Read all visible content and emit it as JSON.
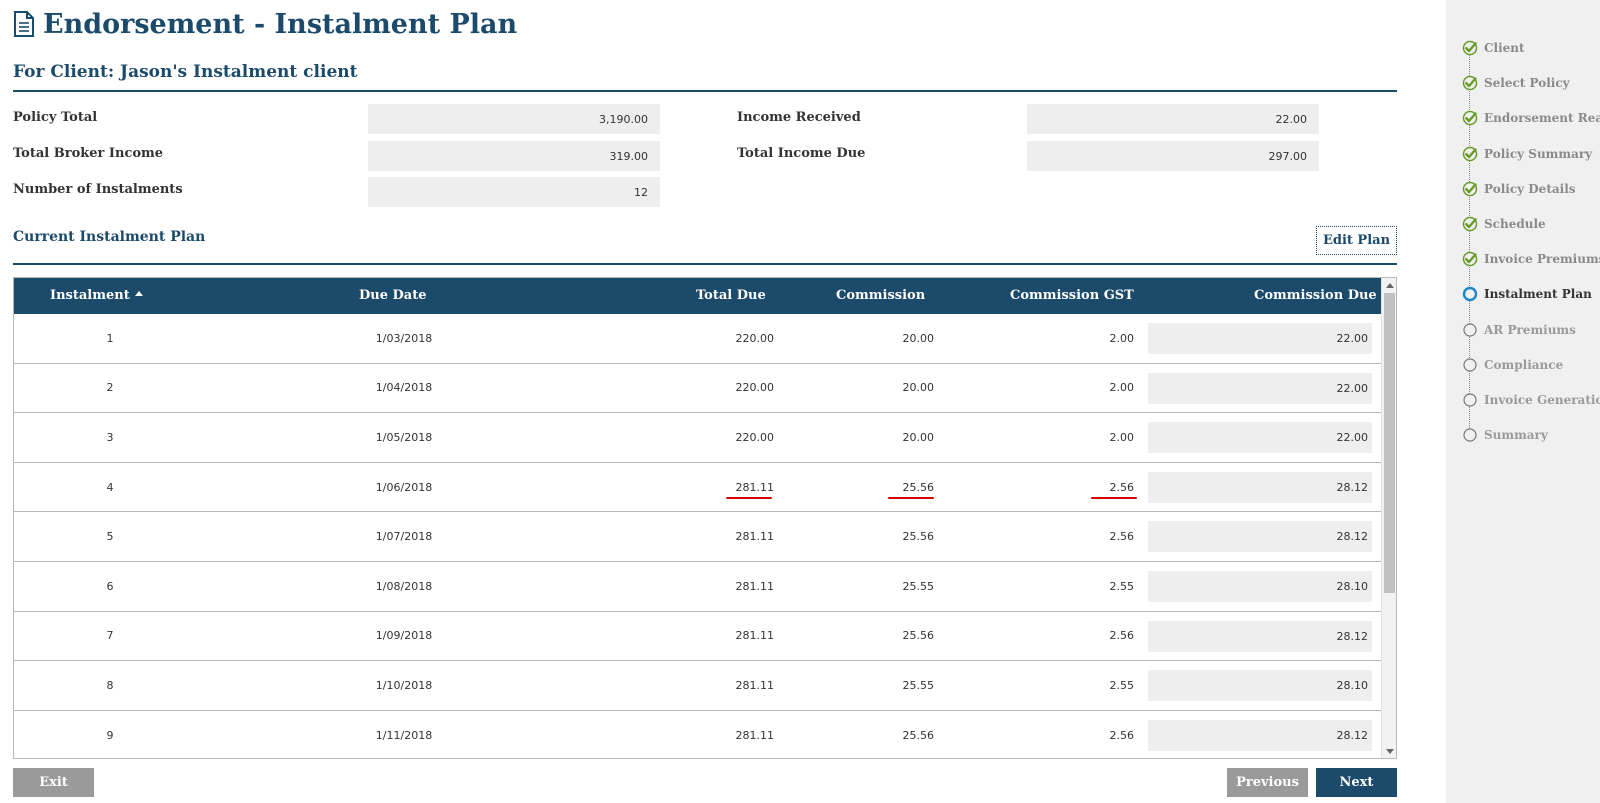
{
  "page": {
    "title": "Endorsement - Instalment Plan",
    "client_heading": "For Client: Jason's Instalment client"
  },
  "summary": {
    "policy_total": {
      "label": "Policy Total",
      "value": "3,190.00"
    },
    "total_broker_income": {
      "label": "Total Broker Income",
      "value": "319.00"
    },
    "number_of_instalments": {
      "label": "Number of Instalments",
      "value": "12"
    },
    "income_received": {
      "label": "Income Received",
      "value": "22.00"
    },
    "total_income_due": {
      "label": "Total Income Due",
      "value": "297.00"
    }
  },
  "plan": {
    "heading": "Current Instalment Plan",
    "edit_button": "Edit Plan",
    "columns": {
      "instalment": "Instalment",
      "due_date": "Due Date",
      "total_due": "Total Due",
      "commission": "Commission",
      "commission_gst": "Commission GST",
      "commission_due": "Commission Due"
    },
    "sorted_column": "instalment",
    "sort_direction": "ascending",
    "rows": [
      {
        "instalment": "1",
        "due_date": "1/03/2018",
        "total_due": "220.00",
        "commission": "20.00",
        "commission_gst": "2.00",
        "commission_due": "22.00",
        "highlighted": false
      },
      {
        "instalment": "2",
        "due_date": "1/04/2018",
        "total_due": "220.00",
        "commission": "20.00",
        "commission_gst": "2.00",
        "commission_due": "22.00",
        "highlighted": false
      },
      {
        "instalment": "3",
        "due_date": "1/05/2018",
        "total_due": "220.00",
        "commission": "20.00",
        "commission_gst": "2.00",
        "commission_due": "22.00",
        "highlighted": false
      },
      {
        "instalment": "4",
        "due_date": "1/06/2018",
        "total_due": "281.11",
        "commission": "25.56",
        "commission_gst": "2.56",
        "commission_due": "28.12",
        "highlighted": true
      },
      {
        "instalment": "5",
        "due_date": "1/07/2018",
        "total_due": "281.11",
        "commission": "25.56",
        "commission_gst": "2.56",
        "commission_due": "28.12",
        "highlighted": false
      },
      {
        "instalment": "6",
        "due_date": "1/08/2018",
        "total_due": "281.11",
        "commission": "25.55",
        "commission_gst": "2.55",
        "commission_due": "28.10",
        "highlighted": false
      },
      {
        "instalment": "7",
        "due_date": "1/09/2018",
        "total_due": "281.11",
        "commission": "25.56",
        "commission_gst": "2.56",
        "commission_due": "28.12",
        "highlighted": false
      },
      {
        "instalment": "8",
        "due_date": "1/10/2018",
        "total_due": "281.11",
        "commission": "25.55",
        "commission_gst": "2.55",
        "commission_due": "28.10",
        "highlighted": false
      },
      {
        "instalment": "9",
        "due_date": "1/11/2018",
        "total_due": "281.11",
        "commission": "25.56",
        "commission_gst": "2.56",
        "commission_due": "28.12",
        "highlighted": false
      }
    ]
  },
  "buttons": {
    "exit": "Exit",
    "previous": "Previous",
    "next": "Next"
  },
  "steps": [
    {
      "label": "Client",
      "status": "done"
    },
    {
      "label": "Select Policy",
      "status": "done"
    },
    {
      "label": "Endorsement Reason",
      "status": "done"
    },
    {
      "label": "Policy Summary",
      "status": "done"
    },
    {
      "label": "Policy Details",
      "status": "done"
    },
    {
      "label": "Schedule",
      "status": "done"
    },
    {
      "label": "Invoice Premiums",
      "status": "done"
    },
    {
      "label": "Instalment Plan",
      "status": "current"
    },
    {
      "label": "AR Premiums",
      "status": "todo"
    },
    {
      "label": "Compliance",
      "status": "todo"
    },
    {
      "label": "Invoice Generation",
      "status": "todo"
    },
    {
      "label": "Summary",
      "status": "todo"
    }
  ],
  "icons": {
    "title": "document-icon",
    "step_done": "check-circle-icon",
    "step_current": "ring-icon",
    "step_todo": "empty-circle-icon"
  },
  "colors": {
    "primary": "#1b4a6b",
    "step_done": "#6a9a2a",
    "step_current": "#1e88c8",
    "highlight_mark": "#d40000",
    "button_grey": "#9a9a9a"
  }
}
